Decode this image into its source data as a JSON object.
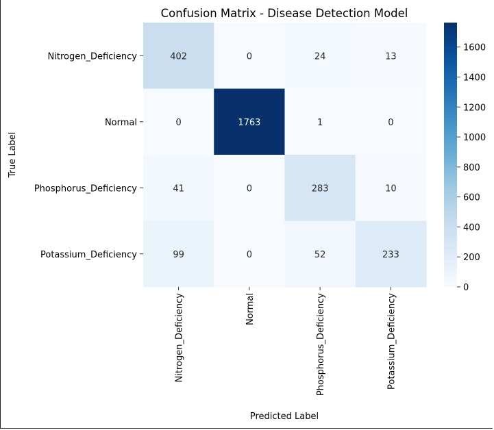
{
  "chart_data": {
    "type": "heatmap",
    "title": "Confusion Matrix - Disease Detection Model",
    "xlabel": "Predicted Label",
    "ylabel": "True Label",
    "x_categories": [
      "Nitrogen_Deficiency",
      "Normal",
      "Phosphorus_Deficiency",
      "Potassium_Deficiency"
    ],
    "y_categories": [
      "Nitrogen_Deficiency",
      "Normal",
      "Phosphorus_Deficiency",
      "Potassium_Deficiency"
    ],
    "values": [
      [
        402,
        0,
        24,
        13
      ],
      [
        0,
        1763,
        1,
        0
      ],
      [
        41,
        0,
        283,
        10
      ],
      [
        99,
        0,
        52,
        233
      ]
    ],
    "colorscale": "Blues",
    "colorbar": {
      "min": 0,
      "max": 1763,
      "ticks": [
        0,
        200,
        400,
        600,
        800,
        1000,
        1200,
        1400,
        1600
      ]
    },
    "colors": {
      "low": "#f7fbff",
      "high": "#08306b"
    }
  }
}
